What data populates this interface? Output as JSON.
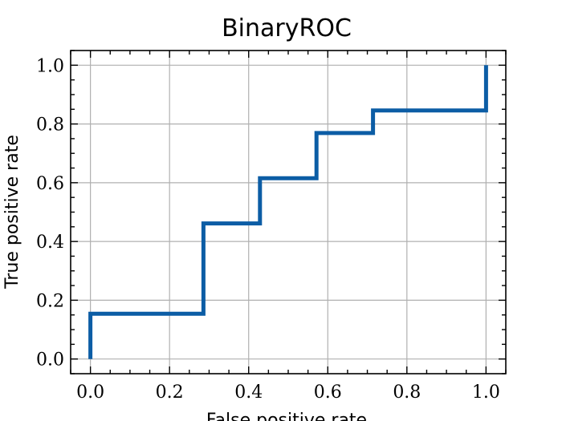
{
  "chart_data": {
    "type": "line",
    "title": "BinaryROC",
    "xlabel": "False positive rate",
    "ylabel": "True positive rate",
    "xlim": [
      -0.05,
      1.05
    ],
    "ylim": [
      -0.05,
      1.05
    ],
    "xticks": [
      0.0,
      0.2,
      0.4,
      0.6,
      0.8,
      1.0
    ],
    "yticks": [
      0.0,
      0.2,
      0.4,
      0.6,
      0.8,
      1.0
    ],
    "xtick_labels": [
      "0.0",
      "0.2",
      "0.4",
      "0.6",
      "0.8",
      "1.0"
    ],
    "ytick_labels": [
      "0.0",
      "0.2",
      "0.4",
      "0.6",
      "0.8",
      "1.0"
    ],
    "minor_ticks": true,
    "grid": true,
    "series": [
      {
        "color": "#0C5DA5",
        "step": true,
        "x": [
          0.0,
          0.0,
          0.2857,
          0.2857,
          0.4286,
          0.4286,
          0.5714,
          0.5714,
          0.7143,
          0.7143,
          1.0,
          1.0
        ],
        "y": [
          0.0,
          0.1538,
          0.1538,
          0.4615,
          0.4615,
          0.6154,
          0.6154,
          0.7692,
          0.7692,
          0.8462,
          0.8462,
          1.0
        ]
      }
    ]
  }
}
